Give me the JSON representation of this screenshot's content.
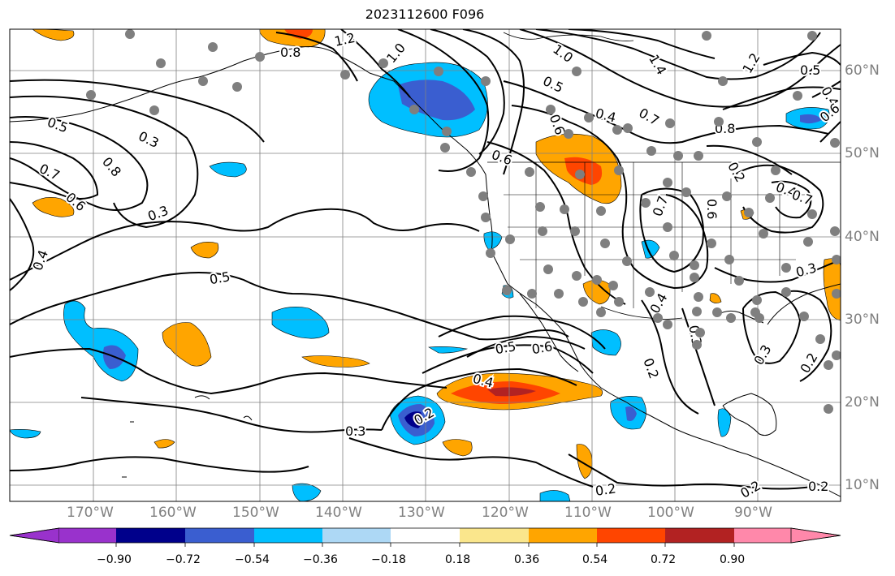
{
  "title": "2023112600 F096",
  "map": {
    "lon_labels": [
      "170°W",
      "160°W",
      "150°W",
      "140°W",
      "130°W",
      "120°W",
      "110°W",
      "100°W",
      "90°W"
    ],
    "lat_labels": [
      "60°N",
      "50°N",
      "40°N",
      "30°N",
      "20°N",
      "10°N"
    ],
    "contour_labels": [
      "1.2",
      "1.0",
      "0.8",
      "0.5",
      "0.3",
      "0.7",
      "0.8",
      "0.6",
      "0.3",
      "0.4",
      "0.5",
      "0.6",
      "0.4",
      "0.5",
      "0.6",
      "0.3",
      "0.2",
      "1.0",
      "1.4",
      "1.2",
      "0.5",
      "0.4",
      "0.6",
      "0.8",
      "0.4",
      "0.5",
      "0.7",
      "0.6",
      "0.7",
      "0.6",
      "0.4",
      "0.2",
      "0.3",
      "0.4",
      "0.3",
      "0.2",
      "0.2",
      "0.2",
      "0.2",
      "0.7",
      "0.3",
      "0.2"
    ]
  },
  "colorbar": {
    "tick_labels": [
      "−0.90",
      "−0.72",
      "−0.54",
      "−0.36",
      "−0.18",
      "0.18",
      "0.36",
      "0.54",
      "0.72",
      "0.90"
    ],
    "colors": [
      "#9932cc",
      "#00008b",
      "#3a5ed0",
      "#00bfff",
      "#add8f5",
      "#ffffff",
      "#fae68c",
      "#ffa500",
      "#ff4500",
      "#b22222",
      "#ff88aa"
    ]
  }
}
